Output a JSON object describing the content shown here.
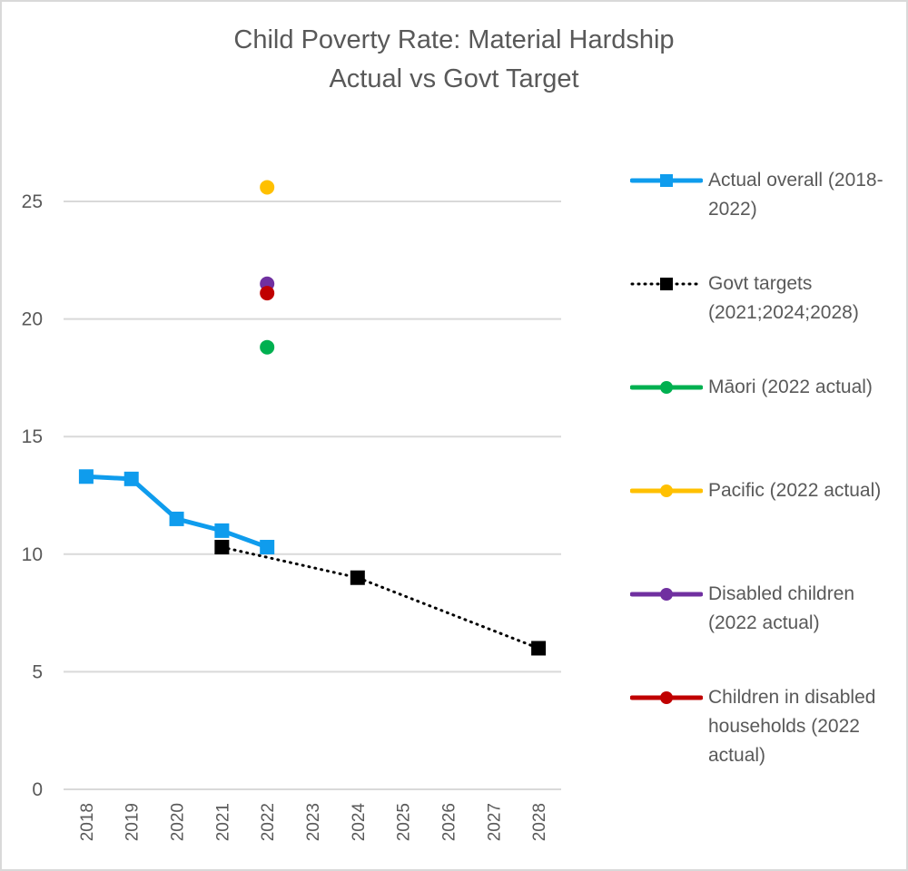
{
  "chart_data": {
    "type": "line",
    "title": "Child Poverty Rate: Material Hardship",
    "subtitle": "Actual  vs Govt Target",
    "xlabel": "",
    "ylabel": "",
    "categories": [
      "2018",
      "2019",
      "2020",
      "2021",
      "2022",
      "2023",
      "2024",
      "2025",
      "2026",
      "2027",
      "2028"
    ],
    "ylim": [
      0,
      25
    ],
    "yticks": [
      0,
      5,
      10,
      15,
      20,
      25
    ],
    "grid": true,
    "legend_position": "right",
    "series": [
      {
        "name": "Actual overall (2018-2022)",
        "color": "#0f9ced",
        "marker": "square",
        "line": "solid",
        "values": [
          13.3,
          13.2,
          11.5,
          11.0,
          10.3,
          null,
          null,
          null,
          null,
          null,
          null
        ]
      },
      {
        "name": "Govt targets (2021;2024;2028)",
        "color": "#000000",
        "marker": "square",
        "line": "dotted",
        "values": [
          null,
          null,
          null,
          10.3,
          null,
          null,
          9.0,
          null,
          null,
          null,
          6.0
        ]
      },
      {
        "name": "Māori (2022 actual)",
        "color": "#00b050",
        "marker": "circle",
        "line": "solid",
        "values": [
          null,
          null,
          null,
          null,
          18.8,
          null,
          null,
          null,
          null,
          null,
          null
        ]
      },
      {
        "name": "Pacific (2022 actual)",
        "color": "#ffc000",
        "marker": "circle",
        "line": "solid",
        "values": [
          null,
          null,
          null,
          null,
          25.6,
          null,
          null,
          null,
          null,
          null,
          null
        ]
      },
      {
        "name": "Disabled children (2022 actual)",
        "color": "#7030a0",
        "marker": "circle",
        "line": "solid",
        "values": [
          null,
          null,
          null,
          null,
          21.5,
          null,
          null,
          null,
          null,
          null,
          null
        ]
      },
      {
        "name": "Children in disabled households (2022 actual)",
        "color": "#c00000",
        "marker": "circle",
        "line": "solid",
        "values": [
          null,
          null,
          null,
          null,
          21.1,
          null,
          null,
          null,
          null,
          null,
          null
        ]
      }
    ]
  },
  "legend": {
    "items": [
      {
        "label": "Actual overall (2018-2022)"
      },
      {
        "label": "Govt targets (2021;2024;2028)"
      },
      {
        "label": "Māori (2022 actual)"
      },
      {
        "label": "Pacific (2022 actual)"
      },
      {
        "label": "Disabled children (2022 actual)"
      },
      {
        "label": "Children in disabled households (2022 actual)"
      }
    ]
  }
}
